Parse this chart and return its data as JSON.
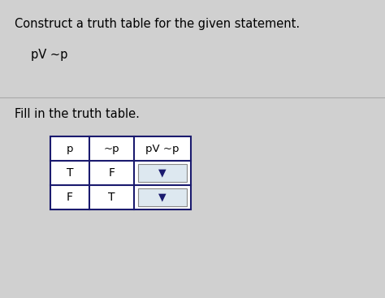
{
  "title_text": "Construct a truth table for the given statement.",
  "formula_text": "pV ~p",
  "subtitle_text": "Fill in the truth table.",
  "bg_color": "#d0d0d0",
  "title_fontsize": 10.5,
  "formula_fontsize": 10.5,
  "subtitle_fontsize": 10.5,
  "col_headers": [
    "p",
    "~p",
    "pV ~p"
  ],
  "row1": [
    "T",
    "F",
    "▼"
  ],
  "row2": [
    "F",
    "T",
    "▼"
  ],
  "table_border_color": "#1a1a6e",
  "cell_bg_color": "#ffffff",
  "dropdown_bg_color": "#dde8f0",
  "text_color": "#000000",
  "arrow_color": "#1a1a6e",
  "divider_color": "#aaaaaa"
}
